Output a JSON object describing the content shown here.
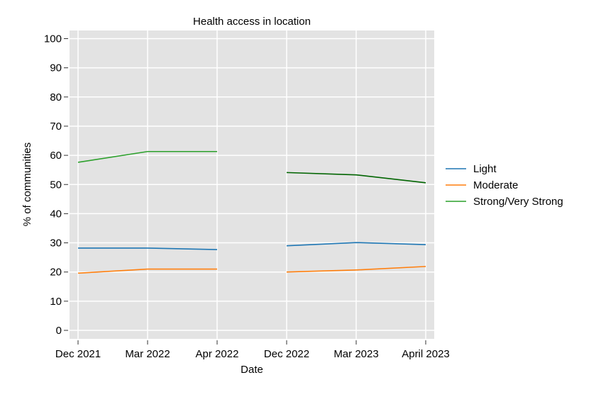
{
  "chart_data": {
    "type": "line",
    "title": "Health access in location",
    "xlabel": "Date",
    "ylabel": "% of communities",
    "categories": [
      "Dec 2021",
      "Mar 2022",
      "Apr 2022",
      "Dec 2022",
      "Mar 2023",
      "April 2023"
    ],
    "ylim": [
      0,
      100
    ],
    "yticks": [
      0,
      10,
      20,
      30,
      40,
      50,
      60,
      70,
      80,
      90,
      100
    ],
    "grid": true,
    "legend_position": "right",
    "series": [
      {
        "name": "Light",
        "color": "#1f77b4",
        "segments": [
          {
            "x": [
              0,
              1,
              2
            ],
            "values": [
              28.2,
              28.2,
              27.7
            ]
          },
          {
            "x": [
              3,
              4,
              5
            ],
            "values": [
              29.0,
              30.1,
              29.4
            ]
          }
        ]
      },
      {
        "name": "Moderate",
        "color": "#ff7f0e",
        "segments": [
          {
            "x": [
              0,
              1,
              2
            ],
            "values": [
              19.6,
              21.0,
              21.0
            ]
          },
          {
            "x": [
              3,
              4,
              5
            ],
            "values": [
              20.0,
              20.7,
              21.9
            ]
          }
        ]
      },
      {
        "name": "Strong/Very Strong",
        "color": "#2ca02c",
        "segments": [
          {
            "x": [
              0,
              1,
              2
            ],
            "values": [
              57.6,
              61.3,
              61.3
            ],
            "color": "#2ca02c"
          },
          {
            "x": [
              3,
              4,
              5
            ],
            "values": [
              54.1,
              53.3,
              50.6
            ],
            "color": "#006400"
          }
        ]
      }
    ]
  }
}
